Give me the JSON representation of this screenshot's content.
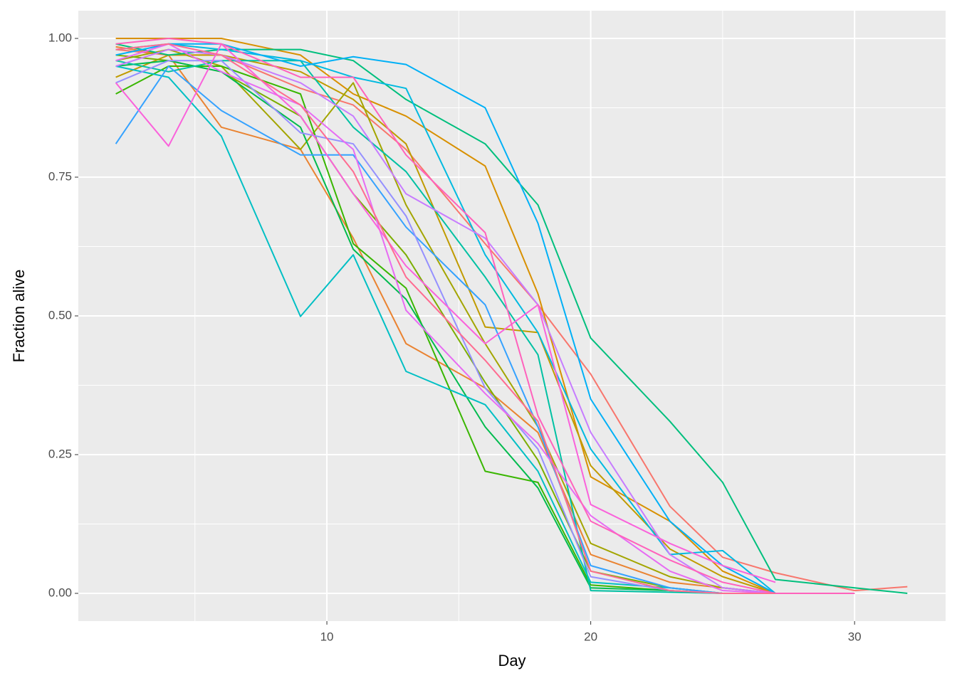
{
  "chart_data": {
    "type": "line",
    "xlabel": "Day",
    "ylabel": "Fraction alive",
    "x": [
      2,
      4,
      6,
      9,
      11,
      13,
      16,
      18,
      20,
      23,
      25,
      27,
      30,
      32
    ],
    "xlim": [
      0.58,
      33.45
    ],
    "xticks": [
      10,
      20,
      30
    ],
    "xminor": [
      5,
      15,
      25
    ],
    "ylim": [
      -0.05,
      1.05
    ],
    "yticks": [
      {
        "value": 0,
        "label": "0.00"
      },
      {
        "value": 0.25,
        "label": "0.25"
      },
      {
        "value": 0.5,
        "label": "0.50"
      },
      {
        "value": 0.75,
        "label": "0.75"
      },
      {
        "value": 1,
        "label": "1.00"
      }
    ],
    "yminor": [
      0.125,
      0.375,
      0.625,
      0.875
    ],
    "grid": true,
    "background": "#ebebeb",
    "series": [
      {
        "color": "#F8766D",
        "values": [
          0.98,
          0.97,
          0.97,
          0.91,
          0.88,
          0.8,
          0.63,
          0.52,
          0.395,
          0.157,
          0.065,
          0.037,
          0.005,
          0.012
        ]
      },
      {
        "color": "#EA8331",
        "values": [
          0.985,
          0.97,
          0.84,
          0.8,
          0.64,
          0.45,
          0.37,
          0.29,
          0.07,
          0.02,
          0.01,
          0,
          null,
          null
        ]
      },
      {
        "color": "#D89000",
        "values": [
          1,
          1,
          1,
          0.97,
          0.9,
          0.86,
          0.77,
          0.54,
          0.21,
          0.13,
          0.04,
          0,
          0,
          null
        ]
      },
      {
        "color": "#C09B00",
        "values": [
          0.93,
          0.97,
          0.97,
          0.94,
          0.89,
          0.81,
          0.48,
          0.47,
          0.23,
          0.08,
          0.03,
          0,
          null,
          null
        ]
      },
      {
        "color": "#A3A500",
        "values": [
          0.96,
          0.98,
          0.95,
          0.8,
          0.92,
          0.7,
          0.45,
          0.3,
          0.09,
          0.03,
          0.01,
          0,
          null,
          null
        ]
      },
      {
        "color": "#7CAE00",
        "values": [
          0.97,
          0.96,
          0.94,
          0.86,
          0.72,
          0.61,
          0.38,
          0.24,
          0.04,
          0.01,
          0,
          0,
          null,
          null
        ]
      },
      {
        "color": "#39B600",
        "values": [
          0.9,
          0.95,
          0.95,
          0.9,
          0.63,
          0.55,
          0.22,
          0.2,
          0.015,
          0.005,
          0,
          0,
          null,
          null
        ]
      },
      {
        "color": "#00BB4E",
        "values": [
          0.95,
          0.96,
          0.94,
          0.84,
          0.62,
          0.53,
          0.3,
          0.19,
          0.01,
          0.005,
          0,
          0,
          null,
          null
        ]
      },
      {
        "color": "#00BF7D",
        "values": [
          0.99,
          0.97,
          0.98,
          0.98,
          0.96,
          0.89,
          0.81,
          0.7,
          0.46,
          0.31,
          0.2,
          0.025,
          0.01,
          0
        ]
      },
      {
        "color": "#00C1A3",
        "values": [
          0.96,
          0.94,
          0.96,
          0.96,
          0.84,
          0.76,
          0.57,
          0.43,
          0.005,
          0.002,
          0,
          0,
          null,
          null
        ]
      },
      {
        "color": "#00BFC4",
        "values": [
          0.95,
          0.93,
          0.824,
          0.499,
          0.61,
          0.4,
          0.34,
          0.22,
          0.02,
          0.01,
          0,
          0,
          null,
          null
        ]
      },
      {
        "color": "#00BAE0",
        "values": [
          0.98,
          0.99,
          0.98,
          0.96,
          0.93,
          0.91,
          0.61,
          0.47,
          0.26,
          0.07,
          0.077,
          0,
          null,
          null
        ]
      },
      {
        "color": "#00B0F6",
        "values": [
          0.97,
          0.99,
          0.99,
          0.95,
          0.967,
          0.953,
          0.875,
          0.667,
          0.35,
          0.13,
          0.05,
          0,
          0,
          null
        ]
      },
      {
        "color": "#35A2FF",
        "values": [
          0.81,
          0.95,
          0.87,
          0.79,
          0.79,
          0.66,
          0.52,
          0.3,
          0.05,
          0.01,
          0,
          0,
          null,
          null
        ]
      },
      {
        "color": "#9590FF",
        "values": [
          0.92,
          0.96,
          0.96,
          0.83,
          0.81,
          0.68,
          0.37,
          0.26,
          0.03,
          0.005,
          0,
          0,
          null,
          null
        ]
      },
      {
        "color": "#C77CFF",
        "values": [
          0.95,
          0.98,
          0.97,
          0.92,
          0.86,
          0.72,
          0.64,
          0.52,
          0.29,
          0.07,
          0.01,
          0,
          null,
          null
        ]
      },
      {
        "color": "#E76BF3",
        "values": [
          0.96,
          0.99,
          0.94,
          0.88,
          0.8,
          0.51,
          0.36,
          0.27,
          0.14,
          0.04,
          0.005,
          0,
          null,
          null
        ]
      },
      {
        "color": "#FA62DB",
        "values": [
          0.92,
          0.806,
          0.99,
          0.86,
          0.72,
          0.59,
          0.45,
          0.52,
          0.16,
          0.09,
          0.05,
          0.02,
          null,
          null
        ]
      },
      {
        "color": "#FF62BC",
        "values": [
          0.99,
          1,
          0.99,
          0.93,
          0.93,
          0.79,
          0.65,
          0.32,
          0.13,
          0.06,
          0.02,
          0,
          0,
          null
        ]
      },
      {
        "color": "#FF6C91",
        "values": [
          0.98,
          0.99,
          0.97,
          0.88,
          0.76,
          0.57,
          0.42,
          0.31,
          0.04,
          0.005,
          0,
          0,
          null,
          null
        ]
      }
    ]
  }
}
